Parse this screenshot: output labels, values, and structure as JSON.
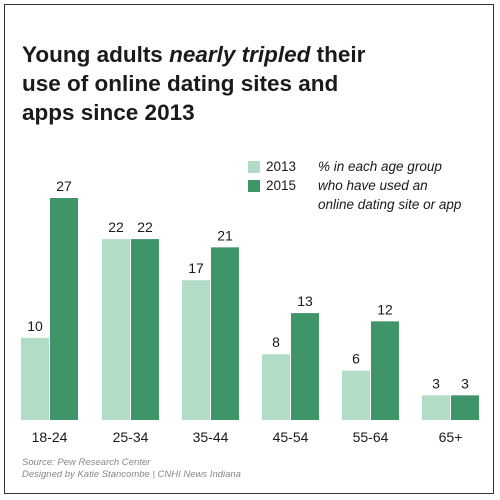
{
  "title": {
    "line1_before": "Young adults ",
    "line1_emphasis": "nearly tripled",
    "line1_after": " their",
    "line2": "use of online dating sites and",
    "line3": "apps since 2013"
  },
  "legend": {
    "items": [
      {
        "label": "2013",
        "desc": "% in each age group"
      },
      {
        "label": "2015",
        "desc": "who have used an"
      },
      {
        "label": "",
        "desc": "online dating site or app"
      }
    ]
  },
  "source": {
    "line1": "Source: Pew Research Center",
    "line2": "Designed by Katie Stancombe | CNHI News Indiana"
  },
  "chart_data": {
    "type": "bar",
    "categories": [
      "18-24",
      "25-34",
      "35-44",
      "45-54",
      "55-64",
      "65+"
    ],
    "series": [
      {
        "name": "2013",
        "values": [
          10,
          22,
          17,
          8,
          6,
          3
        ],
        "color": "#b2dcc6"
      },
      {
        "name": "2015",
        "values": [
          27,
          22,
          21,
          13,
          12,
          3
        ],
        "color": "#3f9468"
      }
    ],
    "ylim": [
      0,
      27
    ],
    "grid": false,
    "legend_position": "top-right",
    "data_labels": true
  }
}
